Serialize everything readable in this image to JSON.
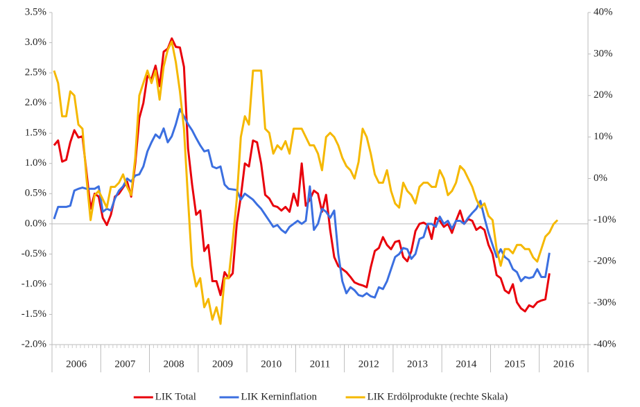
{
  "chart_data": {
    "type": "line",
    "categories": [
      "2006",
      null,
      null,
      null,
      null,
      null,
      null,
      null,
      null,
      null,
      null,
      null,
      "2007",
      null,
      null,
      null,
      null,
      null,
      null,
      null,
      null,
      null,
      null,
      null,
      "2008",
      null,
      null,
      null,
      null,
      null,
      null,
      null,
      null,
      null,
      null,
      null,
      "2009",
      null,
      null,
      null,
      null,
      null,
      null,
      null,
      null,
      null,
      null,
      null,
      "2010",
      null,
      null,
      null,
      null,
      null,
      null,
      null,
      null,
      null,
      null,
      null,
      "2011",
      null,
      null,
      null,
      null,
      null,
      null,
      null,
      null,
      null,
      null,
      null,
      "2012",
      null,
      null,
      null,
      null,
      null,
      null,
      null,
      null,
      null,
      null,
      null,
      "2013",
      null,
      null,
      null,
      null,
      null,
      null,
      null,
      null,
      null,
      null,
      null,
      "2014",
      null,
      null,
      null,
      null,
      null,
      null,
      null,
      null,
      null,
      null,
      null,
      "2015",
      null,
      null,
      null,
      null,
      null,
      null,
      null,
      null,
      null,
      null,
      null,
      "2016",
      null,
      null,
      null,
      null,
      null,
      null,
      null,
      null,
      null,
      null,
      null
    ],
    "ylim": [
      -2.0,
      3.5
    ],
    "yticks": [
      {
        "value": -2.0,
        "label": "-2.0%"
      },
      {
        "value": -1.5,
        "label": "-1.5%"
      },
      {
        "value": -1.0,
        "label": "-1.0%"
      },
      {
        "value": -0.5,
        "label": "-0.5%"
      },
      {
        "value": 0.0,
        "label": "0.0%"
      },
      {
        "value": 0.5,
        "label": "0.5%"
      },
      {
        "value": 1.0,
        "label": "1.0%"
      },
      {
        "value": 1.5,
        "label": "1.5%"
      },
      {
        "value": 2.0,
        "label": "2.0%"
      },
      {
        "value": 2.5,
        "label": "2.5%"
      },
      {
        "value": 3.0,
        "label": "3.0%"
      },
      {
        "value": 3.5,
        "label": "3.5%"
      }
    ],
    "y2lim": [
      -40,
      40
    ],
    "y2ticks": [
      {
        "value": -40,
        "label": "-40%"
      },
      {
        "value": -30,
        "label": "-30%"
      },
      {
        "value": -20,
        "label": "-20%"
      },
      {
        "value": -10,
        "label": "-10%"
      },
      {
        "value": 0,
        "label": "0%"
      },
      {
        "value": 10,
        "label": "10%"
      },
      {
        "value": 20,
        "label": "20%"
      },
      {
        "value": 30,
        "label": "30%"
      },
      {
        "value": 40,
        "label": "40%"
      }
    ],
    "legend": "bottom",
    "series": [
      {
        "name": "LIK Total",
        "color": "#e8000b",
        "values": [
          1.3,
          1.38,
          1.03,
          1.06,
          1.35,
          1.55,
          1.43,
          1.45,
          0.85,
          0.25,
          0.5,
          0.45,
          0.1,
          -0.02,
          0.15,
          0.45,
          0.5,
          0.6,
          0.7,
          0.45,
          1.0,
          1.75,
          2.0,
          2.45,
          2.4,
          2.62,
          2.28,
          2.85,
          2.9,
          3.07,
          2.93,
          2.92,
          2.6,
          1.25,
          0.65,
          0.15,
          0.22,
          -0.45,
          -0.35,
          -0.95,
          -0.95,
          -1.18,
          -0.8,
          -0.9,
          -0.82,
          0.0,
          0.45,
          1.0,
          0.95,
          1.38,
          1.35,
          1.0,
          0.48,
          0.42,
          0.3,
          0.28,
          0.22,
          0.28,
          0.2,
          0.5,
          0.3,
          1.0,
          0.3,
          0.4,
          0.55,
          0.5,
          0.2,
          0.48,
          -0.1,
          -0.55,
          -0.7,
          -0.75,
          -0.8,
          -0.88,
          -0.97,
          -1.0,
          -1.02,
          -1.05,
          -0.72,
          -0.45,
          -0.4,
          -0.22,
          -0.35,
          -0.42,
          -0.3,
          -0.28,
          -0.55,
          -0.62,
          -0.45,
          -0.12,
          0.0,
          0.02,
          -0.02,
          -0.25,
          0.1,
          0.05,
          -0.05,
          0.0,
          -0.15,
          0.05,
          0.22,
          0.0,
          0.08,
          0.05,
          -0.1,
          -0.05,
          -0.1,
          -0.35,
          -0.5,
          -0.85,
          -0.9,
          -1.1,
          -1.15,
          -1.0,
          -1.3,
          -1.4,
          -1.45,
          -1.35,
          -1.38,
          -1.3,
          -1.27,
          -1.25,
          -0.82,
          null,
          null,
          null,
          null,
          null,
          null,
          null,
          null,
          null
        ]
      },
      {
        "name": "LIK Kerninflation",
        "color": "#3b6fe0",
        "values": [
          0.08,
          0.28,
          0.28,
          0.28,
          0.3,
          0.55,
          0.58,
          0.6,
          0.58,
          0.58,
          0.58,
          0.62,
          0.2,
          0.25,
          0.22,
          0.42,
          0.55,
          0.62,
          0.75,
          0.7,
          0.8,
          0.82,
          0.95,
          1.2,
          1.35,
          1.48,
          1.42,
          1.58,
          1.35,
          1.45,
          1.65,
          1.9,
          1.78,
          1.65,
          1.55,
          1.42,
          1.3,
          1.2,
          1.22,
          0.95,
          0.92,
          0.95,
          0.65,
          0.58,
          0.57,
          0.56,
          0.4,
          0.5,
          0.45,
          0.4,
          0.32,
          0.25,
          0.15,
          0.05,
          -0.05,
          -0.02,
          -0.1,
          -0.15,
          -0.05,
          0.0,
          0.05,
          0.0,
          0.05,
          0.62,
          -0.1,
          0.0,
          0.25,
          0.2,
          0.1,
          0.22,
          -0.5,
          -0.95,
          -1.15,
          -1.05,
          -1.1,
          -1.18,
          -1.2,
          -1.15,
          -1.2,
          -1.22,
          -1.05,
          -1.08,
          -0.95,
          -0.75,
          -0.55,
          -0.5,
          -0.4,
          -0.42,
          -0.58,
          -0.5,
          -0.25,
          -0.22,
          0.0,
          0.0,
          -0.05,
          0.12,
          0.0,
          0.05,
          -0.08,
          0.05,
          0.05,
          0.0,
          0.1,
          0.18,
          0.25,
          0.38,
          0.1,
          -0.15,
          -0.35,
          -0.55,
          -0.42,
          -0.55,
          -0.6,
          -0.75,
          -0.8,
          -0.95,
          -0.88,
          -0.9,
          -0.88,
          -0.75,
          -0.88,
          -0.88,
          -0.48,
          null,
          null,
          null,
          null,
          null,
          null,
          null,
          null,
          null
        ]
      },
      {
        "name": "LIK Erdölprodukte (rechte Skala)",
        "color": "#f5b800",
        "axis": "y2",
        "values": [
          26,
          23,
          15,
          15,
          21,
          20,
          13,
          12,
          0,
          -10,
          -4,
          -3,
          -5,
          -7,
          -2,
          -2,
          -1,
          1,
          -2,
          -4,
          5,
          20,
          23,
          26,
          23,
          26,
          19,
          27,
          31,
          33,
          28,
          21,
          12,
          -5,
          -21,
          -26,
          -24,
          -31,
          -29,
          -34,
          -31,
          -35,
          -24,
          -24,
          -15,
          -5,
          10,
          15,
          13,
          26,
          26,
          26,
          12,
          11,
          6,
          8,
          7,
          9,
          6,
          12,
          12,
          12,
          10,
          8,
          8,
          6,
          2,
          10,
          11,
          10,
          8,
          5,
          3,
          2,
          0,
          4,
          12,
          10,
          6,
          1,
          -1,
          -1,
          2,
          -3,
          -6,
          -7,
          -1,
          -3,
          -4,
          -6,
          -2,
          -1,
          -1,
          -2,
          -2,
          2,
          0,
          -4,
          -3,
          -1,
          3,
          2,
          0,
          -2,
          -5,
          -7,
          -6,
          -9,
          -10,
          -17,
          -21,
          -17,
          -17,
          -18,
          -16,
          -16,
          -17,
          -17,
          -19,
          -20,
          -17,
          -14,
          -13,
          -11,
          -10,
          null,
          null,
          null,
          null,
          null,
          null,
          null
        ]
      }
    ]
  }
}
